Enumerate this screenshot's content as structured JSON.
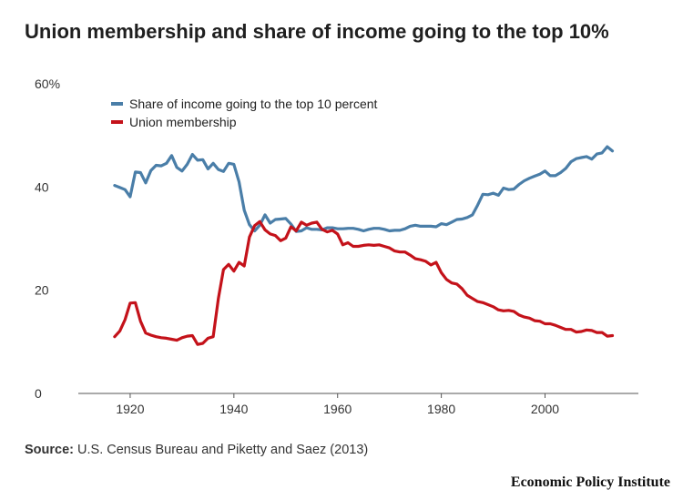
{
  "title": "Union membership and share of income going to the top 10%",
  "source_label": "Source:",
  "source_text": "U.S. Census Bureau and Piketty and Saez (2013)",
  "brand": "Economic Policy Institute",
  "chart_data": {
    "type": "line",
    "ylim": [
      0,
      60
    ],
    "xlim": [
      1910,
      2018
    ],
    "y_ticks": [
      0,
      20,
      40,
      60
    ],
    "y_tick_labels": [
      "0",
      "20",
      "40",
      "60%"
    ],
    "x_ticks": [
      1920,
      1940,
      1960,
      1980,
      2000
    ],
    "x_tick_labels": [
      "1920",
      "1940",
      "1960",
      "1980",
      "2000"
    ],
    "grid": false,
    "legend_position": "top-left",
    "series": [
      {
        "name": "Share of income going to the top 10 percent",
        "color": "#4a7ea8",
        "x": [
          1917,
          1918,
          1919,
          1920,
          1921,
          1922,
          1923,
          1924,
          1925,
          1926,
          1927,
          1928,
          1929,
          1930,
          1931,
          1932,
          1933,
          1934,
          1935,
          1936,
          1937,
          1938,
          1939,
          1940,
          1941,
          1942,
          1943,
          1944,
          1945,
          1946,
          1947,
          1948,
          1949,
          1950,
          1951,
          1952,
          1953,
          1954,
          1955,
          1956,
          1957,
          1958,
          1959,
          1960,
          1961,
          1962,
          1963,
          1964,
          1965,
          1966,
          1967,
          1968,
          1969,
          1970,
          1971,
          1972,
          1973,
          1974,
          1975,
          1976,
          1977,
          1978,
          1979,
          1980,
          1981,
          1982,
          1983,
          1984,
          1985,
          1986,
          1987,
          1988,
          1989,
          1990,
          1991,
          1992,
          1993,
          1994,
          1995,
          1996,
          1997,
          1998,
          1999,
          2000,
          2001,
          2002,
          2003,
          2004,
          2005,
          2006,
          2007,
          2008,
          2009,
          2010,
          2011,
          2012,
          2013
        ],
        "values": [
          40.3,
          39.9,
          39.5,
          38.1,
          42.9,
          42.8,
          40.8,
          43.2,
          44.2,
          44.1,
          44.6,
          46.1,
          43.8,
          43.1,
          44.4,
          46.3,
          45.2,
          45.3,
          43.5,
          44.6,
          43.4,
          43.0,
          44.6,
          44.4,
          41.0,
          35.5,
          32.7,
          31.5,
          32.6,
          34.6,
          33.0,
          33.7,
          33.8,
          33.9,
          32.8,
          31.4,
          31.5,
          32.1,
          31.8,
          31.8,
          31.7,
          32.1,
          32.1,
          31.9,
          31.9,
          32.0,
          32.0,
          31.8,
          31.5,
          31.8,
          32.0,
          32.0,
          31.8,
          31.5,
          31.6,
          31.6,
          31.9,
          32.4,
          32.6,
          32.4,
          32.4,
          32.4,
          32.3,
          32.9,
          32.7,
          33.2,
          33.7,
          33.8,
          34.1,
          34.6,
          36.5,
          38.6,
          38.5,
          38.8,
          38.4,
          39.8,
          39.5,
          39.6,
          40.5,
          41.2,
          41.7,
          42.1,
          42.5,
          43.1,
          42.2,
          42.2,
          42.8,
          43.6,
          44.9,
          45.5,
          45.7,
          45.9,
          45.4,
          46.4,
          46.6,
          47.8,
          47.0
        ]
      },
      {
        "name": "Union membership",
        "color": "#c4121a",
        "x": [
          1917,
          1918,
          1919,
          1920,
          1921,
          1922,
          1923,
          1924,
          1925,
          1926,
          1927,
          1928,
          1929,
          1930,
          1931,
          1932,
          1933,
          1934,
          1935,
          1936,
          1937,
          1938,
          1939,
          1940,
          1941,
          1942,
          1943,
          1944,
          1945,
          1946,
          1947,
          1948,
          1949,
          1950,
          1951,
          1952,
          1953,
          1954,
          1955,
          1956,
          1957,
          1958,
          1959,
          1960,
          1961,
          1962,
          1963,
          1964,
          1965,
          1966,
          1967,
          1968,
          1969,
          1970,
          1971,
          1972,
          1973,
          1974,
          1975,
          1976,
          1977,
          1978,
          1979,
          1980,
          1981,
          1982,
          1983,
          1984,
          1985,
          1986,
          1987,
          1988,
          1989,
          1990,
          1991,
          1992,
          1993,
          1994,
          1995,
          1996,
          1997,
          1998,
          1999,
          2000,
          2001,
          2002,
          2003,
          2004,
          2005,
          2006,
          2007,
          2008,
          2009,
          2010,
          2011,
          2012,
          2013
        ],
        "values": [
          11.0,
          12.1,
          14.3,
          17.5,
          17.6,
          14.0,
          11.7,
          11.3,
          11.0,
          10.8,
          10.7,
          10.5,
          10.3,
          10.8,
          11.1,
          11.2,
          9.5,
          9.7,
          10.7,
          11.0,
          18.4,
          24.0,
          25.0,
          23.7,
          25.4,
          24.7,
          30.3,
          32.5,
          33.3,
          31.7,
          30.9,
          30.6,
          29.6,
          30.1,
          32.3,
          31.5,
          33.2,
          32.6,
          33.0,
          33.2,
          31.8,
          31.3,
          31.6,
          30.9,
          28.8,
          29.2,
          28.5,
          28.5,
          28.7,
          28.8,
          28.7,
          28.8,
          28.5,
          28.2,
          27.6,
          27.4,
          27.4,
          26.8,
          26.1,
          25.9,
          25.6,
          24.9,
          25.4,
          23.4,
          22.1,
          21.4,
          21.2,
          20.3,
          19.0,
          18.4,
          17.8,
          17.6,
          17.2,
          16.8,
          16.2,
          16.0,
          16.1,
          15.9,
          15.2,
          14.8,
          14.6,
          14.1,
          14.0,
          13.5,
          13.5,
          13.2,
          12.8,
          12.4,
          12.4,
          11.9,
          12.0,
          12.3,
          12.2,
          11.8,
          11.8,
          11.1,
          11.2
        ]
      }
    ]
  }
}
